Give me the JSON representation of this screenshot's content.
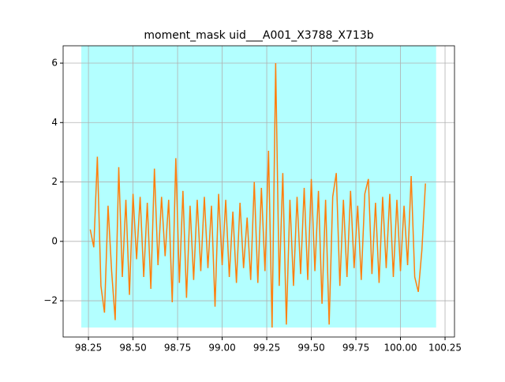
{
  "chart_data": {
    "type": "line",
    "title": "moment_mask uid___A001_X3788_X713b",
    "x": [
      98.26,
      98.28,
      98.3,
      98.32,
      98.34,
      98.36,
      98.38,
      98.4,
      98.42,
      98.44,
      98.46,
      98.48,
      98.5,
      98.52,
      98.54,
      98.56,
      98.58,
      98.6,
      98.62,
      98.64,
      98.66,
      98.68,
      98.7,
      98.72,
      98.74,
      98.76,
      98.78,
      98.8,
      98.82,
      98.84,
      98.86,
      98.88,
      98.9,
      98.92,
      98.94,
      98.96,
      98.98,
      99.0,
      99.02,
      99.04,
      99.06,
      99.08,
      99.1,
      99.12,
      99.14,
      99.16,
      99.18,
      99.2,
      99.22,
      99.24,
      99.26,
      99.28,
      99.3,
      99.32,
      99.34,
      99.36,
      99.38,
      99.4,
      99.42,
      99.44,
      99.46,
      99.48,
      99.5,
      99.52,
      99.54,
      99.56,
      99.58,
      99.6,
      99.62,
      99.64,
      99.66,
      99.68,
      99.7,
      99.72,
      99.74,
      99.76,
      99.78,
      99.8,
      99.82,
      99.84,
      99.86,
      99.88,
      99.9,
      99.92,
      99.94,
      99.96,
      99.98,
      100.0,
      100.02,
      100.04,
      100.06,
      100.08,
      100.1,
      100.12,
      100.14
    ],
    "series": [
      {
        "color": "#ff7f0e",
        "values": [
          0.4,
          -0.2,
          2.85,
          -1.5,
          -2.4,
          1.2,
          -1.0,
          -2.65,
          2.5,
          -1.2,
          1.4,
          -1.8,
          1.6,
          -0.6,
          1.5,
          -1.2,
          1.3,
          -1.6,
          2.45,
          -0.8,
          1.5,
          -0.5,
          1.4,
          -2.05,
          2.8,
          -1.4,
          1.7,
          -1.9,
          1.2,
          -1.3,
          1.4,
          -1.0,
          1.5,
          -0.9,
          1.2,
          -2.2,
          1.6,
          -0.8,
          1.4,
          -1.2,
          1.0,
          -1.4,
          1.3,
          -0.9,
          0.8,
          -1.3,
          2.0,
          -1.4,
          1.8,
          -1.0,
          3.05,
          -2.9,
          6.0,
          -1.5,
          2.3,
          -2.8,
          1.4,
          -1.5,
          1.5,
          -1.1,
          1.8,
          -1.3,
          2.1,
          -1.0,
          1.7,
          -2.1,
          1.4,
          -2.8,
          1.5,
          2.3,
          -1.5,
          1.4,
          -1.2,
          1.7,
          -0.9,
          1.2,
          -1.3,
          1.6,
          2.1,
          -1.1,
          1.3,
          -1.4,
          1.5,
          -0.9,
          1.6,
          -1.2,
          1.4,
          -1.0,
          1.2,
          -0.8,
          2.2,
          -1.2,
          -1.7,
          -0.3,
          1.95
        ]
      }
    ],
    "span": {
      "color": "#b3ffff",
      "x": [
        98.21,
        100.2
      ],
      "y": [
        -2.9,
        6.585
      ]
    },
    "xlim": [
      98.108,
      100.303
    ],
    "ylim": [
      -3.22,
      6.585
    ],
    "xticks": [
      {
        "value": 98.25,
        "label": "98.25"
      },
      {
        "value": 98.5,
        "label": "98.50"
      },
      98.75,
      {
        "value": 99,
        "label": "99.00"
      },
      99.25,
      {
        "value": 99.5,
        "label": "99.50"
      },
      99.75,
      {
        "value": 100,
        "label": "100.00"
      },
      100.25
    ],
    "yticks": [
      {
        "value": -2,
        "label": "−2"
      },
      0,
      2,
      4,
      6
    ],
    "grid": true
  }
}
